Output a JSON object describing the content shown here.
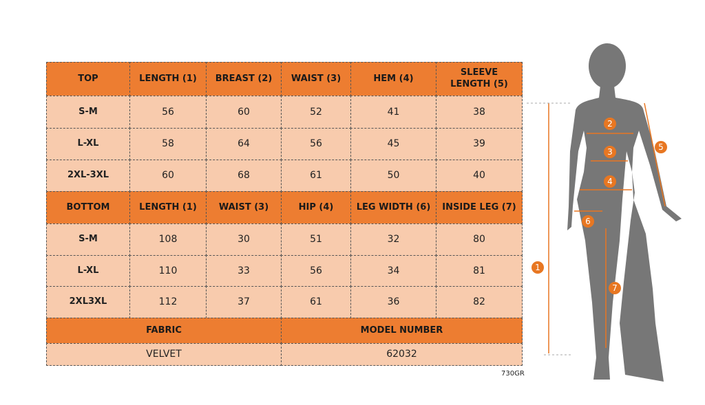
{
  "top": {
    "header": [
      "TOP",
      "LENGTH (1)",
      "BREAST (2)",
      "WAIST (3)",
      "HEM (4)",
      "SLEEVE LENGTH (5)"
    ],
    "rows": [
      [
        "S-M",
        56,
        60,
        52,
        41,
        38
      ],
      [
        "L-XL",
        58,
        64,
        56,
        45,
        39
      ],
      [
        "2XL-3XL",
        60,
        68,
        61,
        50,
        40
      ]
    ]
  },
  "bottom": {
    "header": [
      "BOTTOM",
      "LENGTH (1)",
      "WAIST (3)",
      "HIP (4)",
      "LEG WIDTH (6)",
      "INSIDE LEG (7)"
    ],
    "rows": [
      [
        "S-M",
        108,
        30,
        51,
        32,
        80
      ],
      [
        "L-XL",
        110,
        33,
        56,
        34,
        81
      ],
      [
        "2XL3XL",
        112,
        37,
        61,
        36,
        82
      ]
    ]
  },
  "footer": {
    "labels": [
      "FABRIC",
      "MODEL NUMBER"
    ],
    "values": [
      "VELVET",
      "62032"
    ]
  },
  "code": "730GR",
  "figure": {
    "markers": [
      "1",
      "2",
      "3",
      "4",
      "5",
      "6",
      "7"
    ]
  }
}
